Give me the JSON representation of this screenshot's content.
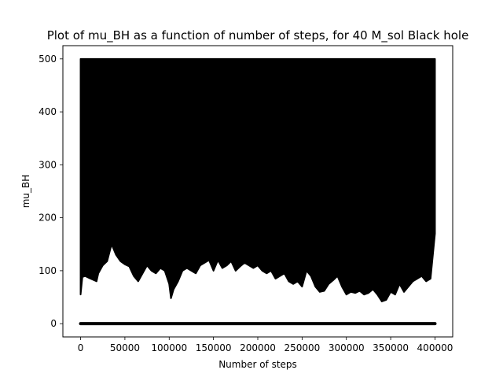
{
  "chart_data": {
    "type": "line",
    "title": "Plot of mu_BH as a function of number of steps, for 40 M_sol Black hole",
    "xlabel": "Number of steps",
    "ylabel": "mu_BH",
    "xlim": [
      -20000,
      420000
    ],
    "ylim": [
      -25,
      525
    ],
    "xticks": [
      0,
      50000,
      100000,
      150000,
      200000,
      250000,
      300000,
      350000,
      400000
    ],
    "yticks": [
      0,
      100,
      200,
      300,
      400,
      500
    ],
    "grid": false,
    "colors": {
      "line": "#000000",
      "background": "#ffffff",
      "axes": "#000000"
    },
    "series": [
      {
        "x": [
          0,
          400000
        ],
        "y": [
          0,
          0
        ]
      },
      {
        "x_start": 0,
        "x_end": 400000,
        "y_upper": 500,
        "lower_envelope": {
          "x": [
            0,
            2000,
            5000,
            10000,
            18000,
            20000,
            25000,
            30000,
            35000,
            40000,
            45000,
            50000,
            55000,
            60000,
            65000,
            70000,
            75000,
            80000,
            85000,
            90000,
            95000,
            100000,
            102000,
            105000,
            110000,
            115000,
            120000,
            125000,
            130000,
            135000,
            140000,
            145000,
            150000,
            155000,
            160000,
            165000,
            170000,
            175000,
            180000,
            185000,
            190000,
            195000,
            200000,
            205000,
            210000,
            215000,
            220000,
            225000,
            230000,
            235000,
            240000,
            245000,
            250000,
            255000,
            260000,
            265000,
            270000,
            275000,
            280000,
            285000,
            290000,
            295000,
            300000,
            305000,
            310000,
            315000,
            320000,
            325000,
            330000,
            335000,
            340000,
            345000,
            350000,
            355000,
            360000,
            365000,
            370000,
            375000,
            380000,
            385000,
            390000,
            395000,
            400000
          ],
          "y": [
            55,
            88,
            90,
            86,
            80,
            95,
            110,
            118,
            150,
            130,
            118,
            112,
            108,
            90,
            80,
            95,
            110,
            100,
            95,
            105,
            100,
            75,
            48,
            65,
            80,
            100,
            105,
            100,
            95,
            110,
            115,
            120,
            100,
            120,
            105,
            110,
            118,
            100,
            108,
            115,
            110,
            105,
            110,
            100,
            95,
            100,
            85,
            90,
            95,
            80,
            75,
            80,
            70,
            100,
            90,
            70,
            60,
            62,
            75,
            82,
            90,
            70,
            55,
            60,
            58,
            62,
            55,
            58,
            65,
            55,
            42,
            45,
            60,
            55,
            75,
            60,
            70,
            80,
            85,
            90,
            80,
            85,
            170
          ]
        }
      }
    ]
  }
}
